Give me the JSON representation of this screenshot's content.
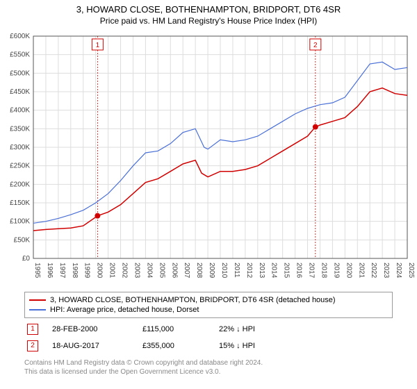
{
  "titles": {
    "main": "3, HOWARD CLOSE, BOTHENHAMPTON, BRIDPORT, DT6 4SR",
    "sub": "Price paid vs. HM Land Registry's House Price Index (HPI)"
  },
  "chart": {
    "type": "line",
    "background_color": "#ffffff",
    "grid_color": "#dddddd",
    "axis_color": "#555555",
    "label_color": "#444444",
    "label_fontsize": 10,
    "y": {
      "min": 0,
      "max": 600000,
      "step": 50000,
      "format_prefix": "£",
      "ticks_k": [
        "£0",
        "£50K",
        "£100K",
        "£150K",
        "£200K",
        "£250K",
        "£300K",
        "£350K",
        "£400K",
        "£450K",
        "£500K",
        "£550K",
        "£600K"
      ]
    },
    "x": {
      "min": 1995,
      "max": 2025,
      "step": 1,
      "ticks": [
        "1995",
        "1996",
        "1997",
        "1998",
        "1999",
        "2000",
        "2001",
        "2002",
        "2003",
        "2004",
        "2005",
        "2006",
        "2007",
        "2008",
        "2009",
        "2010",
        "2011",
        "2012",
        "2013",
        "2014",
        "2015",
        "2016",
        "2017",
        "2018",
        "2019",
        "2020",
        "2021",
        "2022",
        "2023",
        "2024",
        "2025"
      ]
    },
    "series": [
      {
        "id": "price_paid",
        "color": "#d00000",
        "width": 1.5,
        "points": [
          [
            1995.0,
            75000
          ],
          [
            1996.0,
            78000
          ],
          [
            1997.0,
            80000
          ],
          [
            1998.0,
            82000
          ],
          [
            1999.0,
            88000
          ],
          [
            2000.15,
            115000
          ],
          [
            2001.0,
            125000
          ],
          [
            2002.0,
            145000
          ],
          [
            2003.0,
            175000
          ],
          [
            2004.0,
            205000
          ],
          [
            2005.0,
            215000
          ],
          [
            2006.0,
            235000
          ],
          [
            2007.0,
            255000
          ],
          [
            2008.0,
            265000
          ],
          [
            2008.5,
            230000
          ],
          [
            2009.0,
            220000
          ],
          [
            2010.0,
            235000
          ],
          [
            2011.0,
            235000
          ],
          [
            2012.0,
            240000
          ],
          [
            2013.0,
            250000
          ],
          [
            2014.0,
            270000
          ],
          [
            2015.0,
            290000
          ],
          [
            2016.0,
            310000
          ],
          [
            2017.0,
            330000
          ],
          [
            2017.63,
            355000
          ],
          [
            2018.0,
            360000
          ],
          [
            2019.0,
            370000
          ],
          [
            2020.0,
            380000
          ],
          [
            2021.0,
            410000
          ],
          [
            2022.0,
            450000
          ],
          [
            2023.0,
            460000
          ],
          [
            2024.0,
            445000
          ],
          [
            2025.0,
            440000
          ]
        ]
      },
      {
        "id": "hpi",
        "color": "#4a6fd6",
        "width": 1.2,
        "points": [
          [
            1995.0,
            95000
          ],
          [
            1996.0,
            100000
          ],
          [
            1997.0,
            108000
          ],
          [
            1998.0,
            118000
          ],
          [
            1999.0,
            130000
          ],
          [
            2000.0,
            150000
          ],
          [
            2001.0,
            175000
          ],
          [
            2002.0,
            210000
          ],
          [
            2003.0,
            250000
          ],
          [
            2004.0,
            285000
          ],
          [
            2005.0,
            290000
          ],
          [
            2006.0,
            310000
          ],
          [
            2007.0,
            340000
          ],
          [
            2008.0,
            350000
          ],
          [
            2008.7,
            300000
          ],
          [
            2009.0,
            295000
          ],
          [
            2010.0,
            320000
          ],
          [
            2011.0,
            315000
          ],
          [
            2012.0,
            320000
          ],
          [
            2013.0,
            330000
          ],
          [
            2014.0,
            350000
          ],
          [
            2015.0,
            370000
          ],
          [
            2016.0,
            390000
          ],
          [
            2017.0,
            405000
          ],
          [
            2018.0,
            415000
          ],
          [
            2019.0,
            420000
          ],
          [
            2020.0,
            435000
          ],
          [
            2021.0,
            480000
          ],
          [
            2022.0,
            525000
          ],
          [
            2023.0,
            530000
          ],
          [
            2024.0,
            510000
          ],
          [
            2025.0,
            515000
          ]
        ]
      }
    ],
    "sale_markers": [
      {
        "n": "1",
        "year": 2000.15,
        "value": 115000
      },
      {
        "n": "2",
        "year": 2017.63,
        "value": 355000
      }
    ],
    "marker_box_color": "#d00000",
    "marker_dot_color": "#d00000",
    "marker_line_color": "#d00000"
  },
  "legend": {
    "items": [
      {
        "color": "#d00000",
        "label": "3, HOWARD CLOSE, BOTHENHAMPTON, BRIDPORT, DT6 4SR (detached house)"
      },
      {
        "color": "#4a6fd6",
        "label": "HPI: Average price, detached house, Dorset"
      }
    ]
  },
  "sales_table": {
    "rows": [
      {
        "n": "1",
        "date": "28-FEB-2000",
        "price": "£115,000",
        "diff": "22% ↓ HPI"
      },
      {
        "n": "2",
        "date": "18-AUG-2017",
        "price": "£355,000",
        "diff": "15% ↓ HPI"
      }
    ]
  },
  "footer": {
    "line1": "Contains HM Land Registry data © Crown copyright and database right 2024.",
    "line2": "This data is licensed under the Open Government Licence v3.0."
  }
}
